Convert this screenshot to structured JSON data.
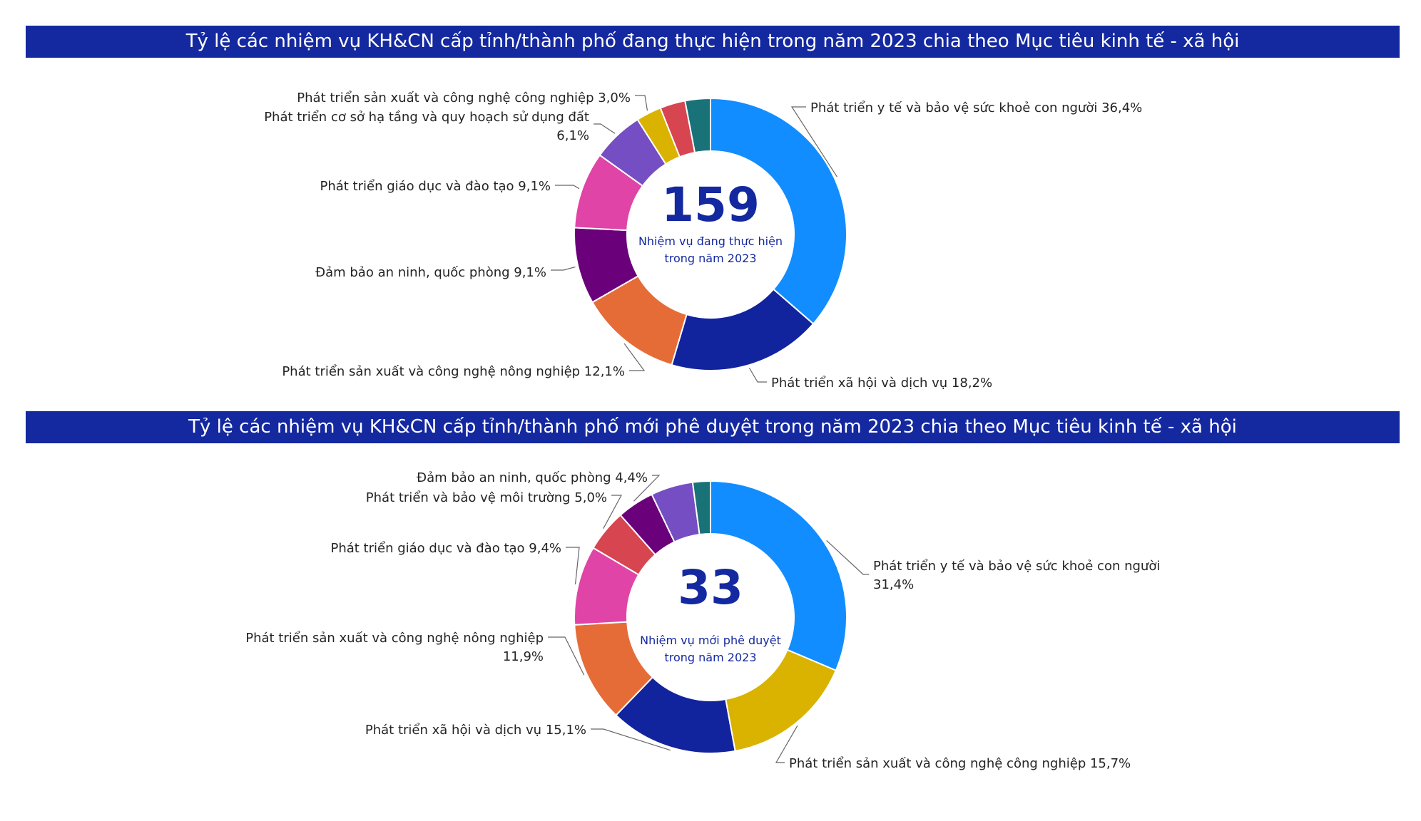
{
  "chart_data": [
    {
      "type": "pie",
      "variant": "donut",
      "title": "Tỷ lệ các nhiệm vụ KH&CN cấp tỉnh/thành phố đang thực hiện trong năm 2023 chia theo Mục tiêu kinh tế - xã hội",
      "center_value": "159",
      "center_caption": [
        "Nhiệm vụ đang thực hiện",
        "trong năm 2023"
      ],
      "slices": [
        {
          "name": "Phát triển y tế và bảo vệ sức khoẻ con người",
          "value": 36.4,
          "color": "#118dff",
          "label": [
            "Phát triển y tế và bảo vệ sức khoẻ con người 36,4%"
          ]
        },
        {
          "name": "Phát triển xã hội và dịch vụ",
          "value": 18.2,
          "color": "#12239e",
          "label": [
            "Phát triển xã hội và dịch vụ 18,2%"
          ]
        },
        {
          "name": "Phát triển sản xuất và công nghệ nông nghiệp",
          "value": 12.1,
          "color": "#e66c37",
          "label": [
            "Phát triển sản xuất và công nghệ nông nghiệp 12,1%"
          ]
        },
        {
          "name": "Đảm bảo an ninh, quốc phòng",
          "value": 9.1,
          "color": "#6b007b",
          "label": [
            "Đảm bảo an ninh, quốc phòng 9,1%"
          ]
        },
        {
          "name": "Phát triển giáo dục và đào tạo",
          "value": 9.1,
          "color": "#e044a7",
          "label": [
            "Phát triển giáo dục và đào tạo 9,1%"
          ]
        },
        {
          "name": "Phát triển cơ sở hạ tầng và quy hoạch sử dụng đất",
          "value": 6.1,
          "color": "#744ec2",
          "label": [
            "Phát triển cơ sở hạ tầng và quy hoạch sử dụng đất",
            "6,1%"
          ]
        },
        {
          "name": "Phát triển sản xuất và công nghệ công nghiệp",
          "value": 3.0,
          "color": "#d9b300",
          "label": [
            "Phát triển sản xuất và công nghệ công nghiệp 3,0%"
          ]
        },
        {
          "name": "",
          "value": 3.0,
          "color": "#d64550",
          "label": []
        },
        {
          "name": "",
          "value": 3.0,
          "color": "#197278",
          "label": []
        }
      ]
    },
    {
      "type": "pie",
      "variant": "donut",
      "title": "Tỷ lệ các nhiệm vụ KH&CN cấp tỉnh/thành phố mới phê duyệt trong năm 2023 chia theo Mục tiêu kinh tế - xã hội",
      "center_value": "33",
      "center_caption": [
        "Nhiệm vụ mới phê duyệt",
        "trong năm 2023"
      ],
      "slices": [
        {
          "name": "Phát triển y tế và bảo vệ sức khoẻ con người",
          "value": 31.4,
          "color": "#118dff",
          "label": [
            "Phát triển y tế và bảo vệ sức khoẻ con người",
            "31,4%"
          ]
        },
        {
          "name": "Phát triển sản xuất và công nghệ công nghiệp",
          "value": 15.7,
          "color": "#d9b300",
          "label": [
            "Phát triển sản xuất và công nghệ công nghiệp 15,7%"
          ]
        },
        {
          "name": "Phát triển xã hội và dịch vụ",
          "value": 15.1,
          "color": "#12239e",
          "label": [
            "Phát triển xã hội và dịch vụ 15,1%"
          ]
        },
        {
          "name": "Phát triển sản xuất và công nghệ nông nghiệp",
          "value": 11.9,
          "color": "#e66c37",
          "label": [
            "Phát triển sản xuất và công nghệ nông nghiệp",
            "11,9%"
          ]
        },
        {
          "name": "Phát triển giáo dục và đào tạo",
          "value": 9.4,
          "color": "#e044a7",
          "label": [
            "Phát triển giáo dục và đào tạo 9,4%"
          ]
        },
        {
          "name": "Phát triển và bảo vệ môi trường",
          "value": 5.0,
          "color": "#d64550",
          "label": [
            "Phát triển và bảo vệ môi trường 5,0%"
          ]
        },
        {
          "name": "Đảm bảo an ninh, quốc phòng",
          "value": 4.4,
          "color": "#6b007b",
          "label": [
            "Đảm bảo an ninh, quốc phòng 4,4%"
          ]
        },
        {
          "name": "",
          "value": 5.0,
          "color": "#744ec2",
          "label": []
        },
        {
          "name": "",
          "value": 2.1,
          "color": "#197278",
          "label": []
        }
      ]
    }
  ]
}
